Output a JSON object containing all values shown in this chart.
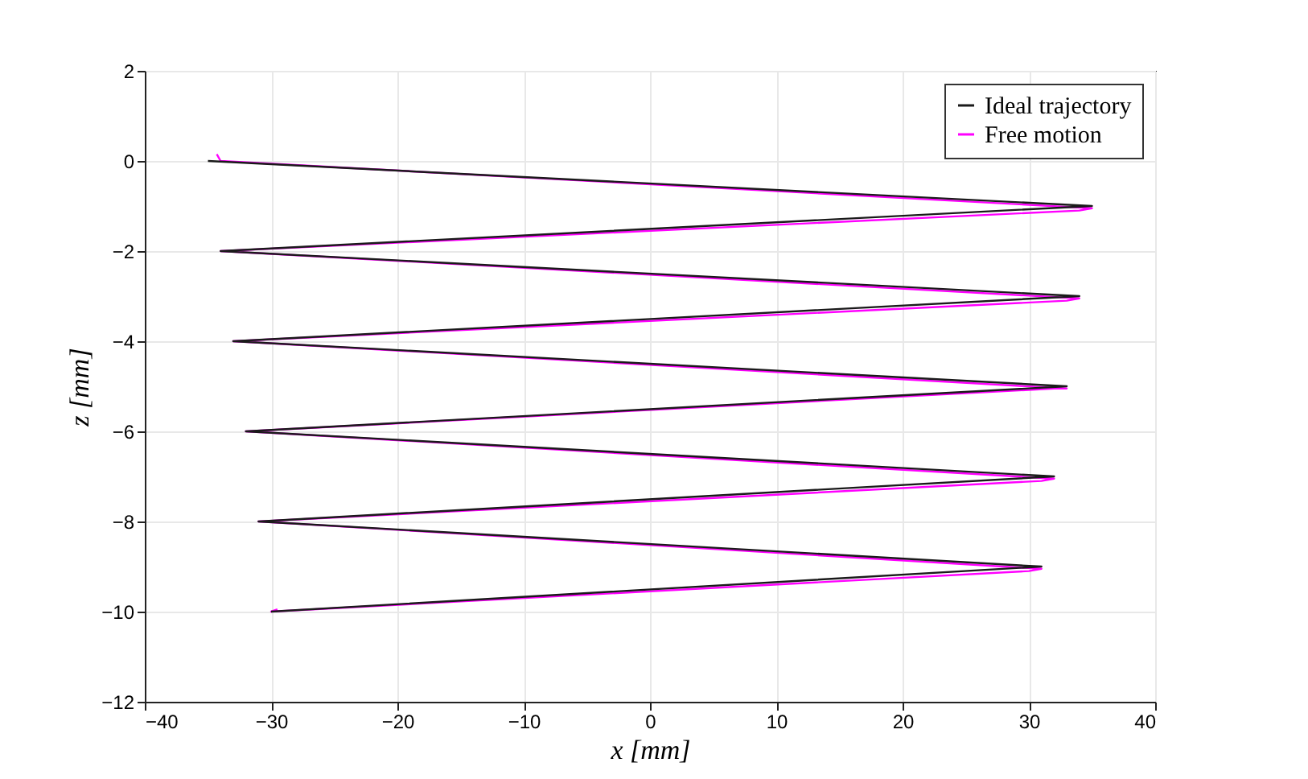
{
  "chart_data": {
    "type": "line",
    "xlabel": "x [mm]",
    "ylabel": "z [mm]",
    "xlim": [
      -40,
      40
    ],
    "xticks": [
      -40,
      -30,
      -20,
      -10,
      0,
      10,
      20,
      30,
      40
    ],
    "ylim": [
      -12,
      2
    ],
    "yticks": [
      -12,
      -10,
      -8,
      -6,
      -4,
      -2,
      0,
      2
    ],
    "grid": true,
    "legend": "top right",
    "marker": "none",
    "line_style": "solid",
    "series": [
      {
        "name": "Ideal trajectory",
        "color": "#1a1a1a",
        "x": [
          -35,
          35,
          -34,
          34,
          -33,
          33,
          -32,
          32,
          -31,
          31,
          -30
        ],
        "values": [
          0,
          -1,
          -2,
          -3,
          -4,
          -5,
          -6,
          -7,
          -8,
          -9,
          -10
        ]
      },
      {
        "name": "Free motion",
        "color": "#ff00ff",
        "x": [
          -34.3,
          -34,
          35,
          34,
          -34,
          34,
          33,
          -33,
          33,
          32,
          -32,
          32,
          31,
          -31,
          31,
          30,
          -30,
          -29.5
        ],
        "values": [
          0.15,
          0,
          -1.05,
          -1.1,
          -2,
          -3.05,
          -3.1,
          -4,
          -5.05,
          -5.05,
          -6,
          -7.05,
          -7.1,
          -8,
          -9.05,
          -9.1,
          -10,
          -9.95
        ]
      }
    ]
  }
}
